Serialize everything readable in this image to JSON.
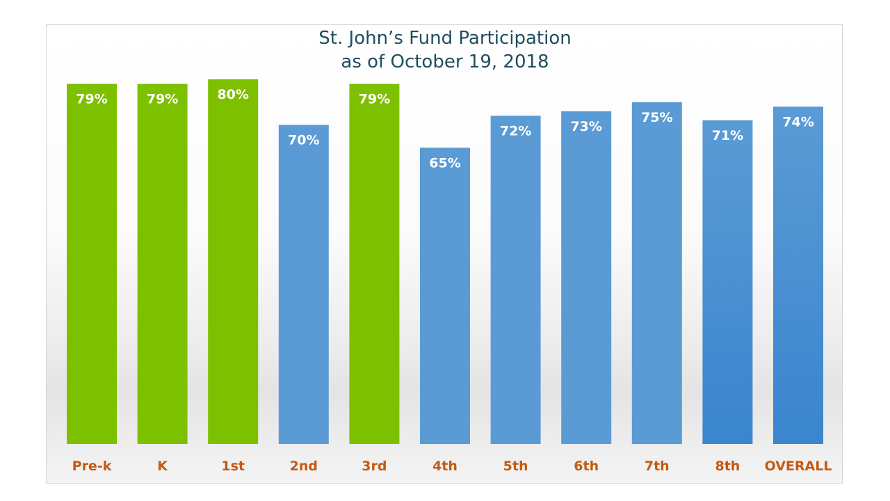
{
  "colors": {
    "green_bar": "#7DC000",
    "blue_bar": "#5B9BD5",
    "blue_bar_dark": "#3A85CE",
    "category_text": "#C55A11",
    "title_text": "#1F4E5F"
  },
  "chart_data": {
    "type": "bar",
    "title_line1": "St. John’s Fund Participation",
    "title_line2": "as of October 19, 2018",
    "xlabel": "",
    "ylabel": "",
    "ylim": [
      0,
      80
    ],
    "grid": false,
    "legend": "none",
    "categories": [
      "Pre-k",
      "K",
      "1st",
      "2nd",
      "3rd",
      "4th",
      "5th",
      "6th",
      "7th",
      "8th",
      "OVERALL"
    ],
    "values": [
      79,
      79,
      80,
      70,
      79,
      65,
      72,
      73,
      75,
      71,
      74
    ],
    "data_labels": [
      "79%",
      "79%",
      "80%",
      "70%",
      "79%",
      "65%",
      "72%",
      "73%",
      "75%",
      "71%",
      "74%"
    ],
    "bar_colors": [
      "green",
      "green",
      "green",
      "blue",
      "green",
      "blue",
      "blue",
      "blue",
      "blue",
      "blue_dark",
      "blue_dark"
    ]
  }
}
